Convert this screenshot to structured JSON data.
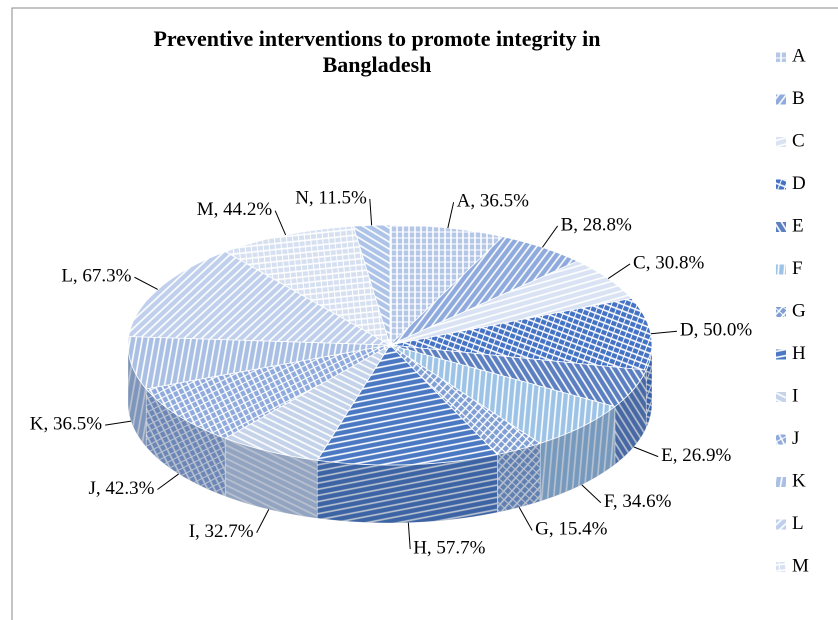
{
  "chart_data": {
    "type": "pie3d",
    "title": "Preventive interventions to promote integrity in Bangladesh",
    "categories": [
      "A",
      "B",
      "C",
      "D",
      "E",
      "F",
      "G",
      "H",
      "I",
      "J",
      "K",
      "L",
      "M",
      "N"
    ],
    "values": [
      36.5,
      28.8,
      30.8,
      50.0,
      26.9,
      34.6,
      15.4,
      57.7,
      32.7,
      42.3,
      36.5,
      67.3,
      44.2,
      11.5
    ],
    "value_labels": [
      "A, 36.5%",
      "B, 28.8%",
      "C, 30.8%",
      "D, 50.0%",
      "E, 26.9%",
      "F, 34.6%",
      "G, 15.4%",
      "H, 57.7%",
      "I, 32.7%",
      "J, 42.3%",
      "K, 36.5%",
      "L, 67.3%",
      "M, 44.2%",
      "N, 11.5%"
    ],
    "colors": [
      "#b4c7e7",
      "#8faadc",
      "#dae3f3",
      "#4472c4",
      "#5b7fc0",
      "#9dc3e6",
      "#7f9fd4",
      "#4a78c2",
      "#c5d3ea",
      "#8faadc",
      "#a9bfe3",
      "#c0d0ec",
      "#d6e0f1",
      "#adc3e8"
    ],
    "legend": "right"
  }
}
